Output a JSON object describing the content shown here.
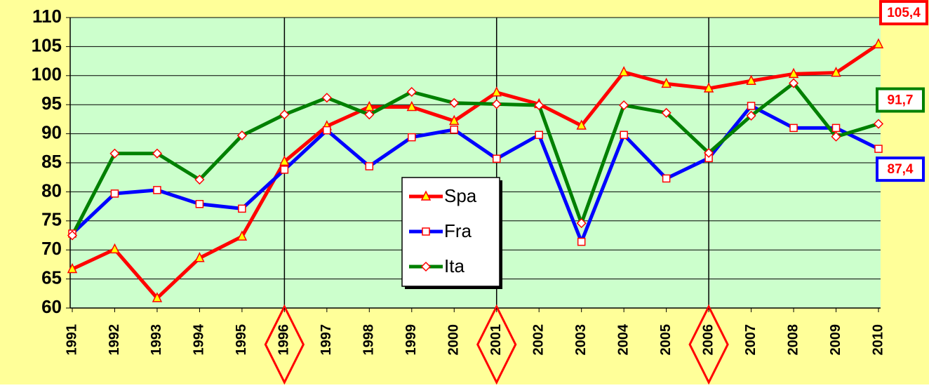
{
  "chart_data": {
    "type": "line",
    "categories": [
      "1991",
      "1992",
      "1993",
      "1994",
      "1995",
      "1996",
      "1997",
      "1998",
      "1999",
      "2000",
      "2001",
      "2002",
      "2003",
      "2004",
      "2005",
      "2006",
      "2007",
      "2008",
      "2009",
      "2010"
    ],
    "series": [
      {
        "name": "Spa",
        "color": "#ff0000",
        "marker": "triangle",
        "marker_fill": "#ffff00",
        "marker_stroke": "#ff0000",
        "label_border": "#ff0000",
        "values": [
          66.7,
          70.1,
          61.7,
          68.6,
          72.3,
          85.2,
          91.3,
          94.6,
          94.6,
          92.2,
          97.1,
          95.1,
          91.4,
          100.6,
          98.6,
          97.8,
          99.1,
          100.3,
          100.5,
          105.4
        ],
        "value_labels": [
          null,
          null,
          null,
          null,
          null,
          null,
          null,
          null,
          null,
          null,
          null,
          null,
          null,
          null,
          null,
          null,
          null,
          null,
          null,
          "105,4"
        ]
      },
      {
        "name": "Fra",
        "color": "#0000ff",
        "marker": "square",
        "marker_fill": "#ffffff",
        "marker_stroke": "#ff0000",
        "label_border": "#0000ff",
        "values": [
          72.8,
          79.7,
          80.3,
          77.9,
          77.1,
          83.8,
          90.6,
          84.4,
          89.4,
          90.7,
          85.7,
          89.8,
          71.4,
          89.8,
          82.3,
          85.8,
          94.8,
          91.0,
          91.0,
          87.4
        ],
        "value_labels": [
          null,
          null,
          null,
          null,
          null,
          null,
          null,
          null,
          null,
          null,
          null,
          null,
          null,
          null,
          null,
          null,
          null,
          null,
          null,
          "87,4"
        ]
      },
      {
        "name": "Ita",
        "color": "#008000",
        "marker": "diamond",
        "marker_fill": "#ffffff",
        "marker_stroke": "#ff0000",
        "label_border": "#008000",
        "values": [
          72.5,
          86.6,
          86.6,
          82.1,
          89.7,
          93.3,
          96.2,
          93.3,
          97.2,
          95.3,
          95.1,
          94.9,
          74.6,
          94.9,
          93.6,
          86.7,
          93.1,
          98.7,
          89.5,
          91.7
        ],
        "value_labels": [
          null,
          null,
          null,
          null,
          null,
          null,
          null,
          null,
          null,
          null,
          null,
          null,
          null,
          null,
          null,
          null,
          null,
          null,
          null,
          "91,7"
        ]
      }
    ],
    "ylim": [
      60,
      110
    ],
    "yticks": [
      60,
      65,
      70,
      75,
      80,
      85,
      90,
      95,
      100,
      105,
      110
    ],
    "grid": true,
    "highlight": [
      5,
      10,
      15
    ],
    "legend": "center",
    "background": "#ffff99",
    "plot_background": "#ccffcc"
  }
}
